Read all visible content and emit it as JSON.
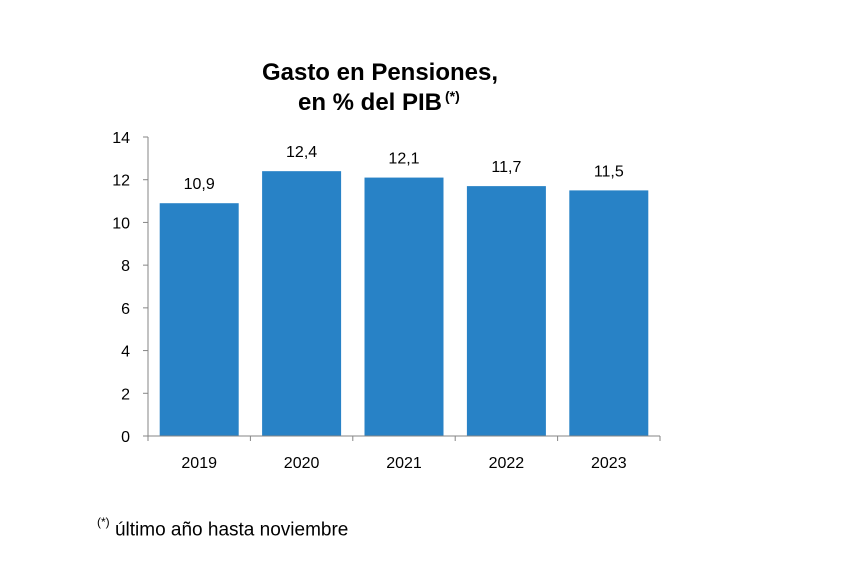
{
  "colors": {
    "bar": "#2882C6",
    "axis": "#868686",
    "text": "#000000",
    "background": "#ffffff"
  },
  "chart_data": {
    "type": "bar",
    "title": "Gasto en Pensiones,",
    "subtitle": "en % del PIB",
    "subtitle_marker": "(*)",
    "categories": [
      "2019",
      "2020",
      "2021",
      "2022",
      "2023"
    ],
    "values": [
      10.9,
      12.4,
      12.1,
      11.7,
      11.5
    ],
    "data_labels": [
      "10,9",
      "12,4",
      "12,1",
      "11,7",
      "11,5"
    ],
    "ylim": [
      0,
      14
    ],
    "yticks": [
      0,
      2,
      4,
      6,
      8,
      10,
      12,
      14
    ],
    "xlabel": "",
    "ylabel": "",
    "grid": false,
    "legend": "none"
  },
  "footnote": {
    "marker": "(*)",
    "text": "último año hasta noviembre"
  }
}
